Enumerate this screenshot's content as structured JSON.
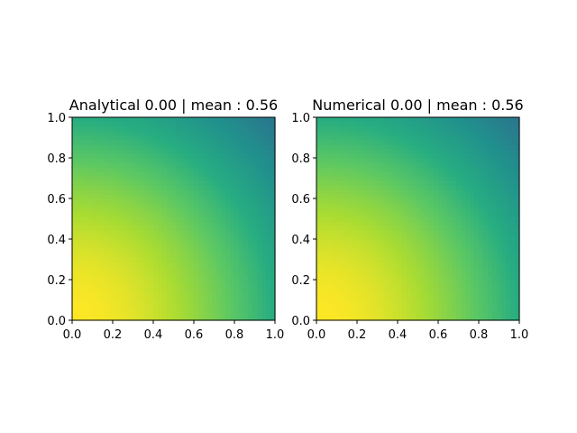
{
  "chart_data": [
    {
      "type": "heatmap",
      "title": "Analytical 0.00 | mean : 0.56",
      "xlabel": "",
      "ylabel": "",
      "xlim": [
        0.0,
        1.0
      ],
      "ylim": [
        0.0,
        1.0
      ],
      "x_ticks": [
        "0.0",
        "0.2",
        "0.4",
        "0.6",
        "0.8",
        "1.0"
      ],
      "y_ticks": [
        "0.0",
        "0.2",
        "0.4",
        "0.6",
        "0.8",
        "1.0"
      ],
      "colormap": "viridis",
      "value_at_corners": {
        "bottom_left": 1.0,
        "bottom_right": 0.62,
        "top_left": 0.62,
        "top_right": 0.37
      },
      "grid": false
    },
    {
      "type": "heatmap",
      "title": "Numerical 0.00 | mean : 0.56",
      "xlabel": "",
      "ylabel": "",
      "xlim": [
        0.0,
        1.0
      ],
      "ylim": [
        0.0,
        1.0
      ],
      "x_ticks": [
        "0.0",
        "0.2",
        "0.4",
        "0.6",
        "0.8",
        "1.0"
      ],
      "y_ticks": [
        "0.0",
        "0.2",
        "0.4",
        "0.6",
        "0.8",
        "1.0"
      ],
      "colormap": "viridis",
      "value_at_corners": {
        "bottom_left": 1.0,
        "bottom_right": 0.62,
        "top_left": 0.62,
        "top_right": 0.37
      },
      "grid": false
    }
  ]
}
